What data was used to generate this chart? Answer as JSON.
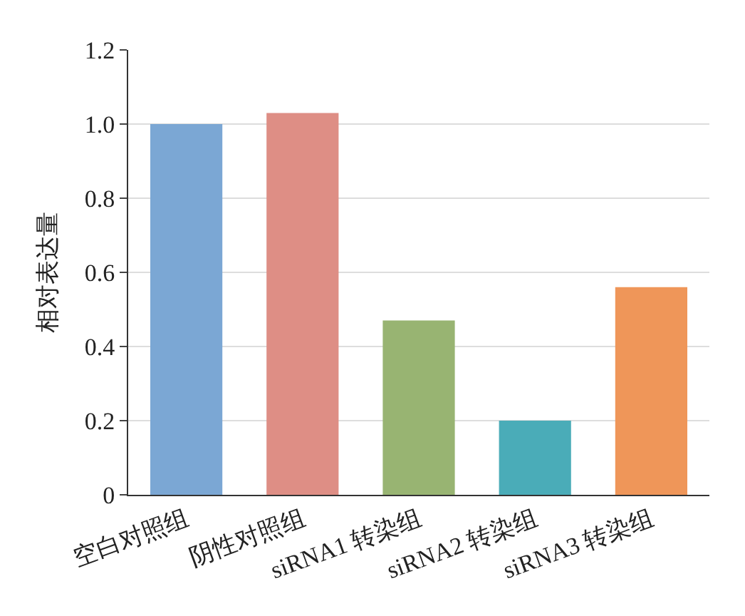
{
  "chart_data": {
    "type": "bar",
    "ylabel": "相对表达量",
    "categories": [
      "空白对照组",
      "阴性对照组",
      "siRNA1 转染组",
      "siRNA2 转染组",
      "siRNA3 转染组"
    ],
    "values": [
      1.0,
      1.03,
      0.47,
      0.2,
      0.56
    ],
    "colors": [
      "#7ba7d4",
      "#de8e85",
      "#98b472",
      "#4aacb8",
      "#ef9659"
    ],
    "ylim": [
      0,
      1.2
    ],
    "yticks": [
      0,
      0.2,
      0.4,
      0.6,
      0.8,
      {
        "value": 1,
        "label": "1.0"
      },
      1.2
    ],
    "grid": "y"
  }
}
